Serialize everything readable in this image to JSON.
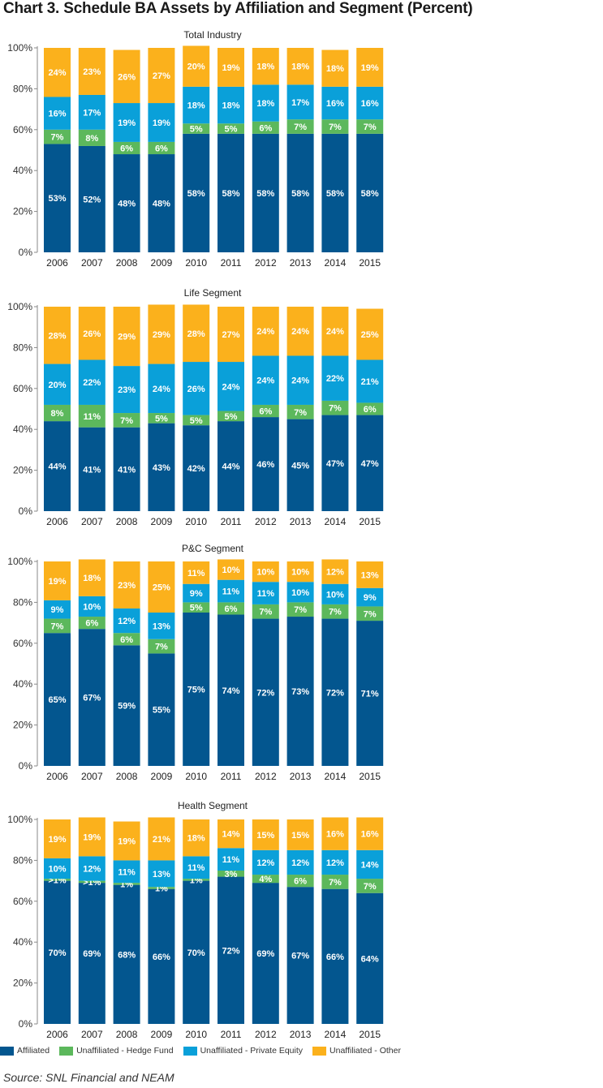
{
  "title": "Chart 3. Schedule BA Assets by Affiliation and Segment (Percent)",
  "source": "Source: SNL Financial and NEAM",
  "colors": {
    "affiliated": "#03568f",
    "hedge_fund": "#5cb85c",
    "private_equity": "#0aa0d9",
    "other": "#fbb11c"
  },
  "legend": [
    {
      "label": "Affiliated",
      "color": "#03568f"
    },
    {
      "label": "Unaffiliated - Hedge Fund",
      "color": "#5cb85c"
    },
    {
      "label": "Unaffiliated - Private Equity",
      "color": "#0aa0d9"
    },
    {
      "label": "Unaffiliated - Other",
      "color": "#fbb11c"
    }
  ],
  "chart_data": [
    {
      "type": "bar",
      "stacked": true,
      "title": "Total Industry",
      "categories": [
        "2006",
        "2007",
        "2008",
        "2009",
        "2010",
        "2011",
        "2012",
        "2013",
        "2014",
        "2015"
      ],
      "ylim": [
        0,
        100
      ],
      "yticks": [
        "0%",
        "20%",
        "40%",
        "60%",
        "80%",
        "100%"
      ],
      "series": [
        {
          "name": "Affiliated",
          "values": [
            53,
            52,
            48,
            48,
            58,
            58,
            58,
            58,
            58,
            58
          ],
          "labels": [
            "53%",
            "52%",
            "48%",
            "48%",
            "58%",
            "58%",
            "58%",
            "58%",
            "58%",
            "58%"
          ]
        },
        {
          "name": "Unaffiliated - Hedge Fund",
          "values": [
            7,
            8,
            6,
            6,
            5,
            5,
            6,
            7,
            7,
            7
          ],
          "labels": [
            "7%",
            "8%",
            "6%",
            "6%",
            "5%",
            "5%",
            "6%",
            "7%",
            "7%",
            "7%"
          ]
        },
        {
          "name": "Unaffiliated - Private Equity",
          "values": [
            16,
            17,
            19,
            19,
            18,
            18,
            18,
            17,
            16,
            16
          ],
          "labels": [
            "16%",
            "17%",
            "19%",
            "19%",
            "18%",
            "18%",
            "18%",
            "17%",
            "16%",
            "16%"
          ]
        },
        {
          "name": "Unaffiliated - Other",
          "values": [
            24,
            23,
            26,
            27,
            20,
            19,
            18,
            18,
            18,
            19
          ],
          "labels": [
            "24%",
            "23%",
            "26%",
            "27%",
            "20%",
            "19%",
            "18%",
            "18%",
            "18%",
            "19%"
          ]
        }
      ]
    },
    {
      "type": "bar",
      "stacked": true,
      "title": "Life Segment",
      "categories": [
        "2006",
        "2007",
        "2008",
        "2009",
        "2010",
        "2011",
        "2012",
        "2013",
        "2014",
        "2015"
      ],
      "ylim": [
        0,
        100
      ],
      "yticks": [
        "0%",
        "20%",
        "40%",
        "60%",
        "80%",
        "100%"
      ],
      "series": [
        {
          "name": "Affiliated",
          "values": [
            44,
            41,
            41,
            43,
            42,
            44,
            46,
            45,
            47,
            47
          ],
          "labels": [
            "44%",
            "41%",
            "41%",
            "43%",
            "42%",
            "44%",
            "46%",
            "45%",
            "47%",
            "47%"
          ]
        },
        {
          "name": "Unaffiliated - Hedge Fund",
          "values": [
            8,
            11,
            7,
            5,
            5,
            5,
            6,
            7,
            7,
            6
          ],
          "labels": [
            "8%",
            "11%",
            "7%",
            "5%",
            "5%",
            "5%",
            "6%",
            "7%",
            "7%",
            "6%"
          ]
        },
        {
          "name": "Unaffiliated - Private Equity",
          "values": [
            20,
            22,
            23,
            24,
            26,
            24,
            24,
            24,
            22,
            21
          ],
          "labels": [
            "20%",
            "22%",
            "23%",
            "24%",
            "26%",
            "24%",
            "24%",
            "24%",
            "22%",
            "21%"
          ]
        },
        {
          "name": "Unaffiliated - Other",
          "values": [
            28,
            26,
            29,
            29,
            28,
            27,
            24,
            24,
            24,
            25
          ],
          "labels": [
            "28%",
            "26%",
            "29%",
            "29%",
            "28%",
            "27%",
            "24%",
            "24%",
            "24%",
            "25%"
          ]
        }
      ]
    },
    {
      "type": "bar",
      "stacked": true,
      "title": "P&C Segment",
      "categories": [
        "2006",
        "2007",
        "2008",
        "2009",
        "2010",
        "2011",
        "2012",
        "2013",
        "2014",
        "2015"
      ],
      "ylim": [
        0,
        100
      ],
      "yticks": [
        "0%",
        "20%",
        "40%",
        "60%",
        "80%",
        "100%"
      ],
      "series": [
        {
          "name": "Affiliated",
          "values": [
            65,
            67,
            59,
            55,
            75,
            74,
            72,
            73,
            72,
            71
          ],
          "labels": [
            "65%",
            "67%",
            "59%",
            "55%",
            "75%",
            "74%",
            "72%",
            "73%",
            "72%",
            "71%"
          ]
        },
        {
          "name": "Unaffiliated - Hedge Fund",
          "values": [
            7,
            6,
            6,
            7,
            5,
            6,
            7,
            7,
            7,
            7
          ],
          "labels": [
            "7%",
            "6%",
            "6%",
            "7%",
            "5%",
            "6%",
            "7%",
            "7%",
            "7%",
            "7%"
          ]
        },
        {
          "name": "Unaffiliated - Private Equity",
          "values": [
            9,
            10,
            12,
            13,
            9,
            11,
            11,
            10,
            10,
            9
          ],
          "labels": [
            "9%",
            "10%",
            "12%",
            "13%",
            "9%",
            "11%",
            "11%",
            "10%",
            "10%",
            "9%"
          ]
        },
        {
          "name": "Unaffiliated - Other",
          "values": [
            19,
            18,
            23,
            25,
            11,
            10,
            10,
            10,
            12,
            13
          ],
          "labels": [
            "19%",
            "18%",
            "23%",
            "25%",
            "11%",
            "10%",
            "10%",
            "10%",
            "12%",
            "13%"
          ]
        }
      ]
    },
    {
      "type": "bar",
      "stacked": true,
      "title": "Health Segment",
      "categories": [
        "2006",
        "2007",
        "2008",
        "2009",
        "2010",
        "2011",
        "2012",
        "2013",
        "2014",
        "2015"
      ],
      "ylim": [
        0,
        100
      ],
      "yticks": [
        "0%",
        "20%",
        "40%",
        "60%",
        "80%",
        "100%"
      ],
      "series": [
        {
          "name": "Affiliated",
          "values": [
            70,
            69,
            68,
            66,
            70,
            72,
            69,
            67,
            66,
            64
          ],
          "labels": [
            "70%",
            "69%",
            "68%",
            "66%",
            "70%",
            "72%",
            "69%",
            "67%",
            "66%",
            "64%"
          ]
        },
        {
          "name": "Unaffiliated - Hedge Fund",
          "values": [
            1,
            1,
            1,
            1,
            1,
            3,
            4,
            6,
            7,
            7
          ],
          "labels": [
            ">1%",
            ">1%",
            "1%",
            "1%",
            "1%",
            "3%",
            "4%",
            "6%",
            "7%",
            "7%"
          ]
        },
        {
          "name": "Unaffiliated - Private Equity",
          "values": [
            10,
            12,
            11,
            13,
            11,
            11,
            12,
            12,
            12,
            14
          ],
          "labels": [
            "10%",
            "12%",
            "11%",
            "13%",
            "11%",
            "11%",
            "12%",
            "12%",
            "12%",
            "14%"
          ]
        },
        {
          "name": "Unaffiliated - Other",
          "values": [
            19,
            19,
            19,
            21,
            18,
            14,
            15,
            15,
            16,
            16
          ],
          "labels": [
            "19%",
            "19%",
            "19%",
            "21%",
            "18%",
            "14%",
            "15%",
            "15%",
            "16%",
            "16%"
          ]
        }
      ]
    }
  ]
}
